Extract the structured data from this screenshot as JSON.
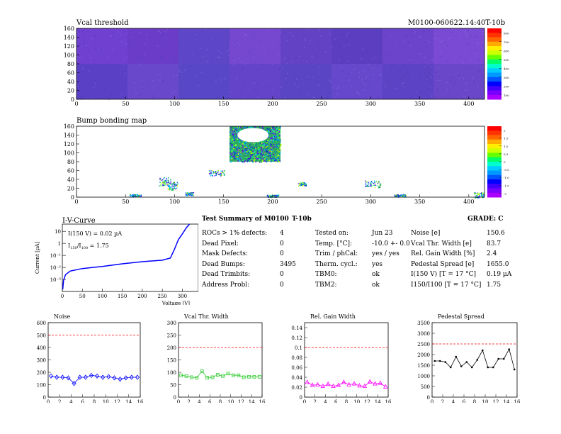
{
  "maps": {
    "vcal": {
      "title": "Vcal threshold",
      "id_label": "M0100-060622.14:40T-10b",
      "xticks": [
        "0",
        "50",
        "100",
        "150",
        "200",
        "250",
        "300",
        "350",
        "400"
      ],
      "yticks": [
        "0",
        "20",
        "40",
        "60",
        "80",
        "100",
        "120",
        "140",
        "160"
      ],
      "palette_labels": [
        "100",
        "200",
        "300",
        "400",
        "500",
        "600",
        "700",
        "800"
      ]
    },
    "bump": {
      "title": "Bump bonding map",
      "xticks": [
        "0",
        "50",
        "100",
        "150",
        "200",
        "250",
        "300",
        "350",
        "400"
      ],
      "yticks": [
        "0",
        "20",
        "40",
        "60",
        "80",
        "100",
        "120",
        "140",
        "160"
      ],
      "palette_labels": [
        "-2",
        "-1.5",
        "-1.0",
        "-0.5",
        "0",
        "0.5",
        "1.0",
        "1.5",
        "2"
      ]
    }
  },
  "iv": {
    "title": "I-V-Curve",
    "ylabel": "Current [µA]",
    "xlabel": "Voltage [V]",
    "annotation1": "I(150 V) = 0.02 µA",
    "annotation2_pre": "I",
    "annotation2_sub1": "150",
    "annotation2_mid": "/I",
    "annotation2_sub2": "100",
    "annotation2_post": " = 1.75",
    "yticks": [
      "10⁻³",
      "10⁻²",
      "10⁻¹",
      "1",
      "10"
    ],
    "xticks": [
      "0",
      "50",
      "100",
      "150",
      "200",
      "250",
      "300"
    ]
  },
  "summary": {
    "title": "Test Summary of M0100",
    "module_tag": "T-10b",
    "grade": "GRADE:  C",
    "col1_labels": [
      "ROCs > 1% defects:",
      "Dead Pixel:",
      "Mask Defects:",
      "Dead Bumps:",
      "Dead Trimbits:",
      "Address Probl:"
    ],
    "col1_values": [
      "4",
      "0",
      "0",
      "3495",
      "0",
      "0"
    ],
    "col2_labels": [
      "Tested on:",
      "Temp. [°C]:",
      "Trim / phCal:",
      "Therm. cycl.:",
      "TBM0:",
      "TBM2:"
    ],
    "col2_values": [
      "Jun 23",
      "-10.0 +- 0.0",
      "yes / yes",
      "yes",
      "ok",
      "ok"
    ],
    "col3_labels": [
      "Noise [e]",
      "Vcal Thr. Width [e]",
      "Rel. Gain Width [%]",
      "Pedestal Spread [e]",
      "I(150 V) [T = 17 °C]",
      "I150/I100   [T = 17 °C]"
    ],
    "col3_values": [
      "150.6",
      "83.7",
      "2.4",
      "1655.0",
      "0.19 µA",
      "1.75"
    ]
  },
  "chart_data": [
    {
      "type": "line",
      "title": "Noise",
      "x": [
        0,
        1,
        2,
        3,
        4,
        5,
        6,
        7,
        8,
        9,
        10,
        11,
        12,
        13,
        14,
        15
      ],
      "values": [
        170,
        160,
        160,
        155,
        110,
        160,
        160,
        175,
        170,
        160,
        165,
        155,
        145,
        155,
        160,
        160
      ],
      "ylim": [
        0,
        600
      ],
      "xlim": [
        0,
        16
      ],
      "yticks": [
        0,
        100,
        200,
        300,
        400,
        500,
        600
      ],
      "threshold": 500,
      "color": "#0000ff",
      "marker": "diamond"
    },
    {
      "type": "line",
      "title": "Vcal Thr. Width",
      "x": [
        0,
        1,
        2,
        3,
        4,
        5,
        6,
        7,
        8,
        9,
        10,
        11,
        12,
        13,
        14,
        15
      ],
      "values": [
        88,
        85,
        80,
        78,
        105,
        78,
        80,
        90,
        85,
        95,
        88,
        88,
        80,
        82,
        82,
        82
      ],
      "ylim": [
        0,
        300
      ],
      "xlim": [
        0,
        16
      ],
      "yticks": [
        0,
        50,
        100,
        150,
        200,
        250,
        300
      ],
      "threshold": 200,
      "color": "#33cc33",
      "marker": "square"
    },
    {
      "type": "line",
      "title": "Rel. Gain Width",
      "x": [
        0,
        1,
        2,
        3,
        4,
        5,
        6,
        7,
        8,
        9,
        10,
        11,
        12,
        13,
        14,
        15
      ],
      "values": [
        0.03,
        0.024,
        0.025,
        0.022,
        0.026,
        0.022,
        0.024,
        0.03,
        0.025,
        0.027,
        0.023,
        0.022,
        0.031,
        0.027,
        0.028,
        0.021
      ],
      "ylim": [
        0,
        0.15
      ],
      "xlim": [
        0,
        16
      ],
      "yticks": [
        0,
        0.02,
        0.04,
        0.06,
        0.08,
        0.1,
        0.12,
        0.14
      ],
      "threshold": 0.1,
      "color": "#ff00ff",
      "marker": "triangle"
    },
    {
      "type": "line",
      "title": "Pedestal Spread",
      "x": [
        0,
        1,
        2,
        3,
        4,
        5,
        6,
        7,
        8,
        9,
        10,
        11,
        12,
        13,
        14,
        15
      ],
      "values": [
        1700,
        1700,
        1650,
        1400,
        1900,
        1450,
        1650,
        1400,
        1750,
        2200,
        1400,
        1400,
        1800,
        1800,
        2250,
        1300
      ],
      "ylim": [
        0,
        3500
      ],
      "xlim": [
        0,
        16
      ],
      "yticks": [
        0,
        500,
        1000,
        1500,
        2000,
        2500,
        3000,
        3500
      ],
      "threshold": 2500,
      "color": "#000000",
      "marker": "dot"
    }
  ]
}
